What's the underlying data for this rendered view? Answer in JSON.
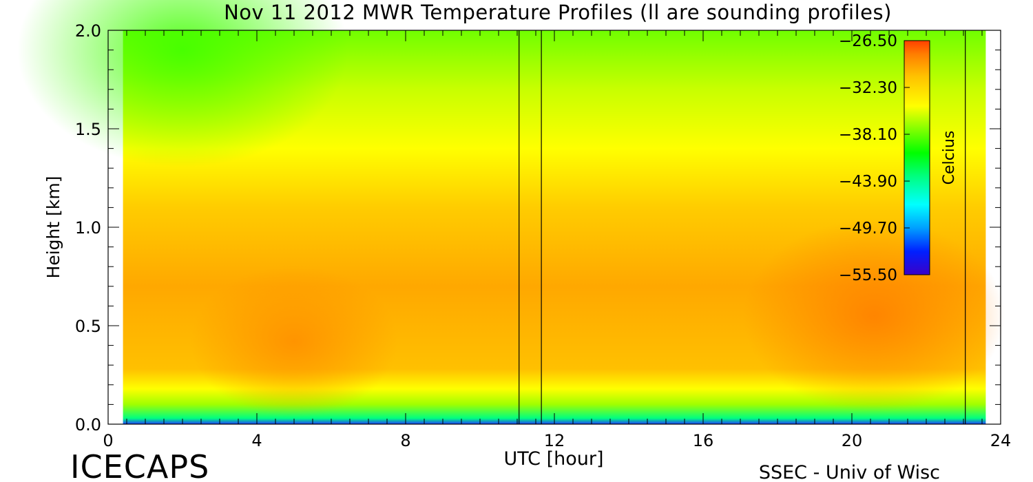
{
  "chart_data": {
    "type": "heatmap",
    "title": "Nov 11 2012 MWR Temperature Profiles (ll are sounding profiles)",
    "xlabel": "UTC [hour]",
    "ylabel": "Height [km]",
    "xlim": [
      0,
      24
    ],
    "ylim": [
      0.0,
      2.0
    ],
    "x_ticks": [
      "0",
      "4",
      "8",
      "12",
      "16",
      "20",
      "24"
    ],
    "y_ticks": [
      "0.0",
      "0.5",
      "1.0",
      "1.5",
      "2.0"
    ],
    "data_extent_hours": [
      0.4,
      23.6
    ],
    "sounding_times_hours": [
      11.05,
      11.65,
      23.05
    ],
    "colorbar": {
      "label": "Celcius",
      "ticks": [
        "-26.50",
        "-32.30",
        "-38.10",
        "-43.90",
        "-49.70",
        "-55.50"
      ],
      "range": [
        -55.5,
        -26.5
      ],
      "colors": [
        "#3a00c8",
        "#0020ff",
        "#00a0ff",
        "#00ffff",
        "#00ff80",
        "#00ff00",
        "#80ff00",
        "#ffff00",
        "#ffc000",
        "#ff8000",
        "#ff4000"
      ]
    },
    "field_description_by_region": [
      {
        "hours": [
          0.4,
          11.0
        ],
        "height_km": [
          0.0,
          0.05
        ],
        "approx_temp_c": -44
      },
      {
        "hours": [
          0.4,
          23.6
        ],
        "height_km": [
          0.05,
          0.15
        ],
        "approx_temp_c": -34
      },
      {
        "hours": [
          3.0,
          7.0
        ],
        "height_km": [
          0.2,
          0.75
        ],
        "approx_temp_c": -28
      },
      {
        "hours": [
          18.0,
          23.0
        ],
        "height_km": [
          0.2,
          0.9
        ],
        "approx_temp_c": -27.5
      },
      {
        "hours": [
          0.4,
          6.0
        ],
        "height_km": [
          1.3,
          2.0
        ],
        "approx_temp_c": -35
      },
      {
        "hours": [
          12.0,
          23.6
        ],
        "height_km": [
          1.3,
          2.0
        ],
        "approx_temp_c": -32
      }
    ]
  },
  "footer": {
    "left_logo": "ICECAPS",
    "right_credit": "SSEC - Univ of Wisc"
  }
}
